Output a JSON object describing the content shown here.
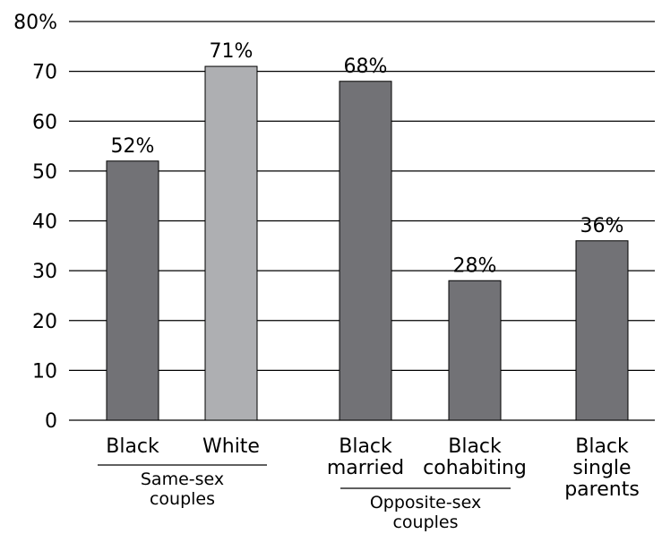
{
  "chart_data": {
    "type": "bar",
    "categories": [
      [
        "Black"
      ],
      [
        "White"
      ],
      [
        "Black",
        "married"
      ],
      [
        "Black",
        "cohabiting"
      ],
      [
        "Black",
        "single",
        "parents"
      ]
    ],
    "values": [
      52,
      71,
      68,
      28,
      36
    ],
    "data_labels": [
      "52%",
      "71%",
      "68%",
      "28%",
      "36%"
    ],
    "bar_colors": [
      "#727276",
      "#aeafb2",
      "#727276",
      "#727276",
      "#727276"
    ],
    "ylim": [
      0,
      80
    ],
    "y_ticks": [
      "0",
      "10",
      "20",
      "30",
      "40",
      "50",
      "60",
      "70",
      "80%"
    ],
    "y_tick_values": [
      0,
      10,
      20,
      30,
      40,
      50,
      60,
      70,
      80
    ],
    "groups": [
      {
        "label_lines": [
          "Same-sex",
          "couples"
        ],
        "categories": [
          0,
          1
        ]
      },
      {
        "label_lines": [
          "Opposite-sex",
          "couples"
        ],
        "categories": [
          2,
          3
        ]
      }
    ],
    "grid": true,
    "title": "",
    "xlabel": "",
    "ylabel": ""
  }
}
